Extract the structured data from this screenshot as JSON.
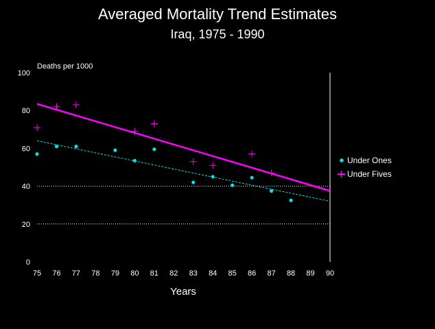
{
  "chart_data": {
    "type": "scatter",
    "title": "Averaged Mortality Trend Estimates",
    "subtitle": "Iraq, 1975 - 1990",
    "xlabel": "Years",
    "ylabel": "Deaths per 1000",
    "xlim": [
      75,
      90
    ],
    "ylim": [
      0,
      100
    ],
    "x_ticks": [
      "75",
      "76",
      "77",
      "78",
      "79",
      "80",
      "81",
      "82",
      "83",
      "84",
      "85",
      "86",
      "87",
      "88",
      "89",
      "90"
    ],
    "y_ticks": [
      "0",
      "20",
      "40",
      "60",
      "80",
      "100"
    ],
    "gridlines_y": [
      20,
      40
    ],
    "legend_position": "right",
    "series": [
      {
        "name": "Under Ones",
        "color": "#00e5e5",
        "marker": "dot",
        "points": [
          [
            75,
            57
          ],
          [
            76,
            61
          ],
          [
            77,
            61
          ],
          [
            79,
            59
          ],
          [
            80,
            53.5
          ],
          [
            81,
            59.5
          ],
          [
            83,
            42
          ],
          [
            84,
            45
          ],
          [
            85,
            40.5
          ],
          [
            86,
            44.5
          ],
          [
            87,
            37.5
          ],
          [
            88,
            32.5
          ]
        ],
        "trend": [
          [
            75,
            64
          ],
          [
            90,
            32
          ]
        ]
      },
      {
        "name": "Under Fives",
        "color": "#ff00ff",
        "marker": "plus",
        "points": [
          [
            75,
            71
          ],
          [
            76,
            82
          ],
          [
            77,
            83
          ],
          [
            80,
            69
          ],
          [
            81,
            73
          ],
          [
            83,
            53
          ],
          [
            84,
            51
          ],
          [
            86,
            57
          ],
          [
            87,
            47
          ]
        ],
        "trend": [
          [
            75,
            83.5
          ],
          [
            90,
            37.5
          ]
        ]
      }
    ]
  }
}
